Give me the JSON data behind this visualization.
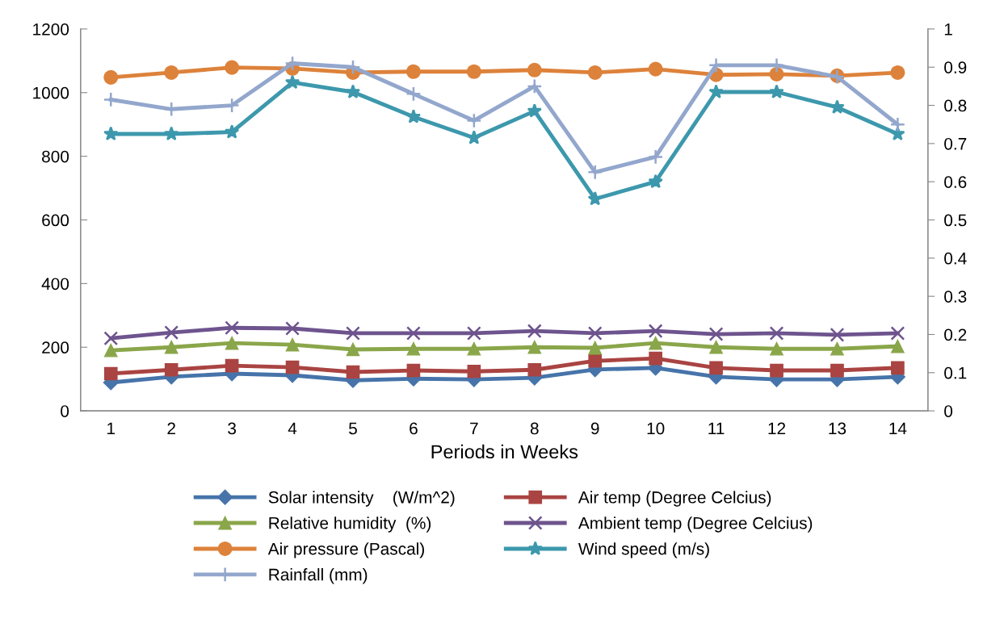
{
  "chart_data": {
    "type": "line",
    "xlabel": "Periods in Weeks",
    "categories": [
      "1",
      "2",
      "3",
      "4",
      "5",
      "6",
      "7",
      "8",
      "9",
      "10",
      "11",
      "12",
      "13",
      "14"
    ],
    "ylim": [
      0,
      1200
    ],
    "yticks": [
      0,
      200,
      400,
      600,
      800,
      1000,
      1200
    ],
    "y2lim": [
      0,
      1
    ],
    "y2ticks": [
      {
        "value": 0,
        "label": "0"
      },
      0.1,
      0.2,
      0.3,
      0.4,
      0.5,
      0.6,
      0.7,
      0.8,
      0.9,
      {
        "value": 1,
        "label": "1"
      }
    ],
    "grid": false,
    "legend": "bottom",
    "series": [
      {
        "name": "Solar intensity    (W/m^2)",
        "color": "#4674aa",
        "marker": "diamond",
        "values": [
          89,
          107,
          117,
          112,
          96,
          101,
          99,
          104,
          130,
          135,
          107,
          99,
          99,
          107
        ]
      },
      {
        "name": "Air temp (Degree Celcius)",
        "color": "#a94442",
        "marker": "square",
        "values": [
          117,
          129,
          142,
          137,
          122,
          127,
          124,
          129,
          157,
          165,
          135,
          127,
          127,
          135
        ]
      },
      {
        "name": "Relative humidity  (%)",
        "color": "#8aa64a",
        "marker": "triangle",
        "values": [
          190,
          200,
          213,
          208,
          193,
          195,
          195,
          200,
          198,
          213,
          200,
          195,
          195,
          203
        ]
      },
      {
        "name": "Ambient temp (Degree Celcius)",
        "color": "#6e548e",
        "marker": "cross",
        "values": [
          228,
          246,
          261,
          259,
          244,
          244,
          244,
          251,
          244,
          251,
          241,
          244,
          239,
          244
        ]
      },
      {
        "name": "Air pressure (Pascal)",
        "color": "#dd823b",
        "marker": "circle",
        "values": [
          1048,
          1063,
          1079,
          1076,
          1063,
          1066,
          1066,
          1071,
          1063,
          1074,
          1056,
          1058,
          1053,
          1063
        ]
      },
      {
        "name": "Wind speed (m/s)",
        "color": "#3d98ad",
        "marker": "star",
        "axis": "y2",
        "values": [
          0.725,
          0.725,
          0.73,
          0.86,
          0.835,
          0.77,
          0.715,
          0.785,
          0.555,
          0.6,
          0.835,
          0.835,
          0.795,
          0.725
        ]
      },
      {
        "name": "Rainfall (mm)",
        "color": "#93a7cd",
        "marker": "plus",
        "axis": "y2",
        "values": [
          0.815,
          0.79,
          0.8,
          0.91,
          0.9,
          0.83,
          0.76,
          0.85,
          0.625,
          0.665,
          0.905,
          0.905,
          0.875,
          0.75
        ]
      }
    ]
  }
}
